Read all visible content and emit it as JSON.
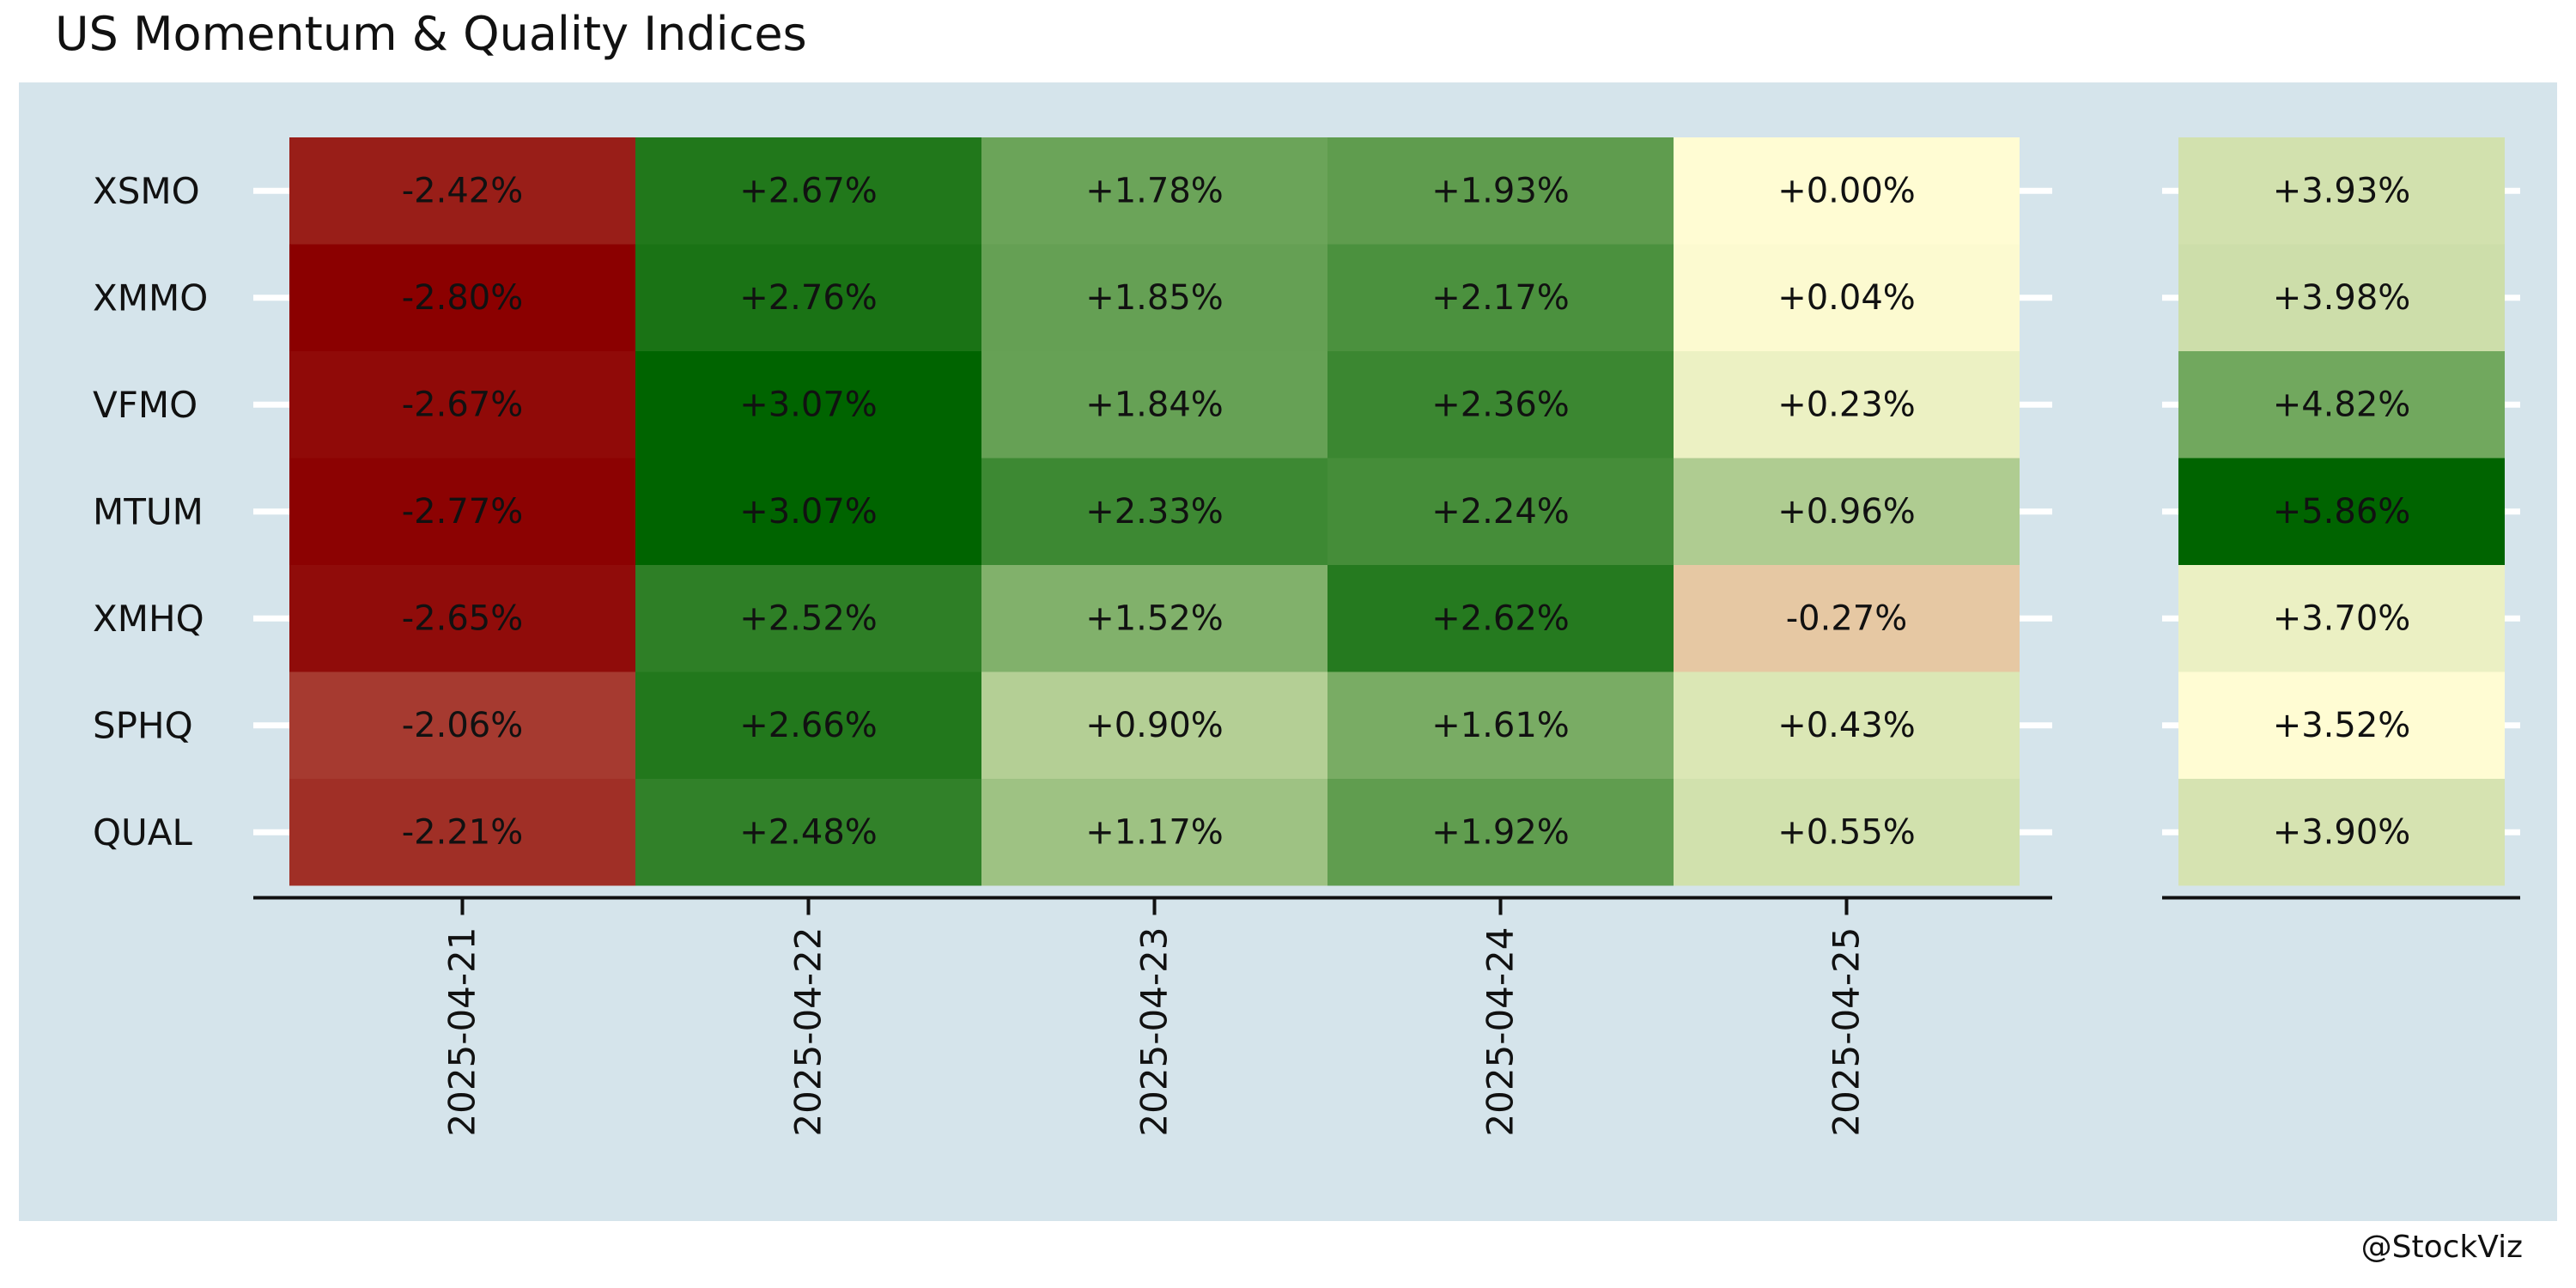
{
  "chart_data": {
    "type": "heatmap",
    "title": "US Momentum & Quality Indices",
    "caption": "@StockViz",
    "rows": [
      "XSMO",
      "XMMO",
      "VFMO",
      "MTUM",
      "XMHQ",
      "SPHQ",
      "QUAL"
    ],
    "columns": [
      "2025-04-21",
      "2025-04-22",
      "2025-04-23",
      "2025-04-24",
      "2025-04-25"
    ],
    "values": [
      [
        -2.42,
        2.67,
        1.78,
        1.93,
        0.0
      ],
      [
        -2.8,
        2.76,
        1.85,
        2.17,
        0.04
      ],
      [
        -2.67,
        3.07,
        1.84,
        2.36,
        0.23
      ],
      [
        -2.77,
        3.07,
        2.33,
        2.24,
        0.96
      ],
      [
        -2.65,
        2.52,
        1.52,
        2.62,
        -0.27
      ],
      [
        -2.06,
        2.66,
        0.9,
        1.61,
        0.43
      ],
      [
        -2.21,
        2.48,
        1.17,
        1.92,
        0.55
      ]
    ],
    "labels": [
      [
        "-2.42%",
        "+2.67%",
        "+1.78%",
        "+1.93%",
        "+0.00%"
      ],
      [
        "-2.80%",
        "+2.76%",
        "+1.85%",
        "+2.17%",
        "+0.04%"
      ],
      [
        "-2.67%",
        "+3.07%",
        "+1.84%",
        "+2.36%",
        "+0.23%"
      ],
      [
        "-2.77%",
        "+3.07%",
        "+2.33%",
        "+2.24%",
        "+0.96%"
      ],
      [
        "-2.65%",
        "+2.52%",
        "+1.52%",
        "+2.62%",
        "-0.27%"
      ],
      [
        "-2.06%",
        "+2.66%",
        "+0.90%",
        "+1.61%",
        "+0.43%"
      ],
      [
        "-2.21%",
        "+2.48%",
        "+1.17%",
        "+1.92%",
        "+0.55%"
      ]
    ],
    "totals": {
      "values": [
        3.93,
        3.98,
        4.82,
        5.86,
        3.7,
        3.52,
        3.9
      ],
      "labels": [
        "+3.93%",
        "+3.98%",
        "+4.82%",
        "+5.86%",
        "+3.70%",
        "+3.52%",
        "+3.90%"
      ]
    },
    "colors": {
      "panel_background": "#d5e4eb",
      "negative_extreme": "#8b0000",
      "negative_mild": "#f0ddb4",
      "neutral": "#fffcd3",
      "positive_extreme": "#006400"
    },
    "grid": true
  }
}
